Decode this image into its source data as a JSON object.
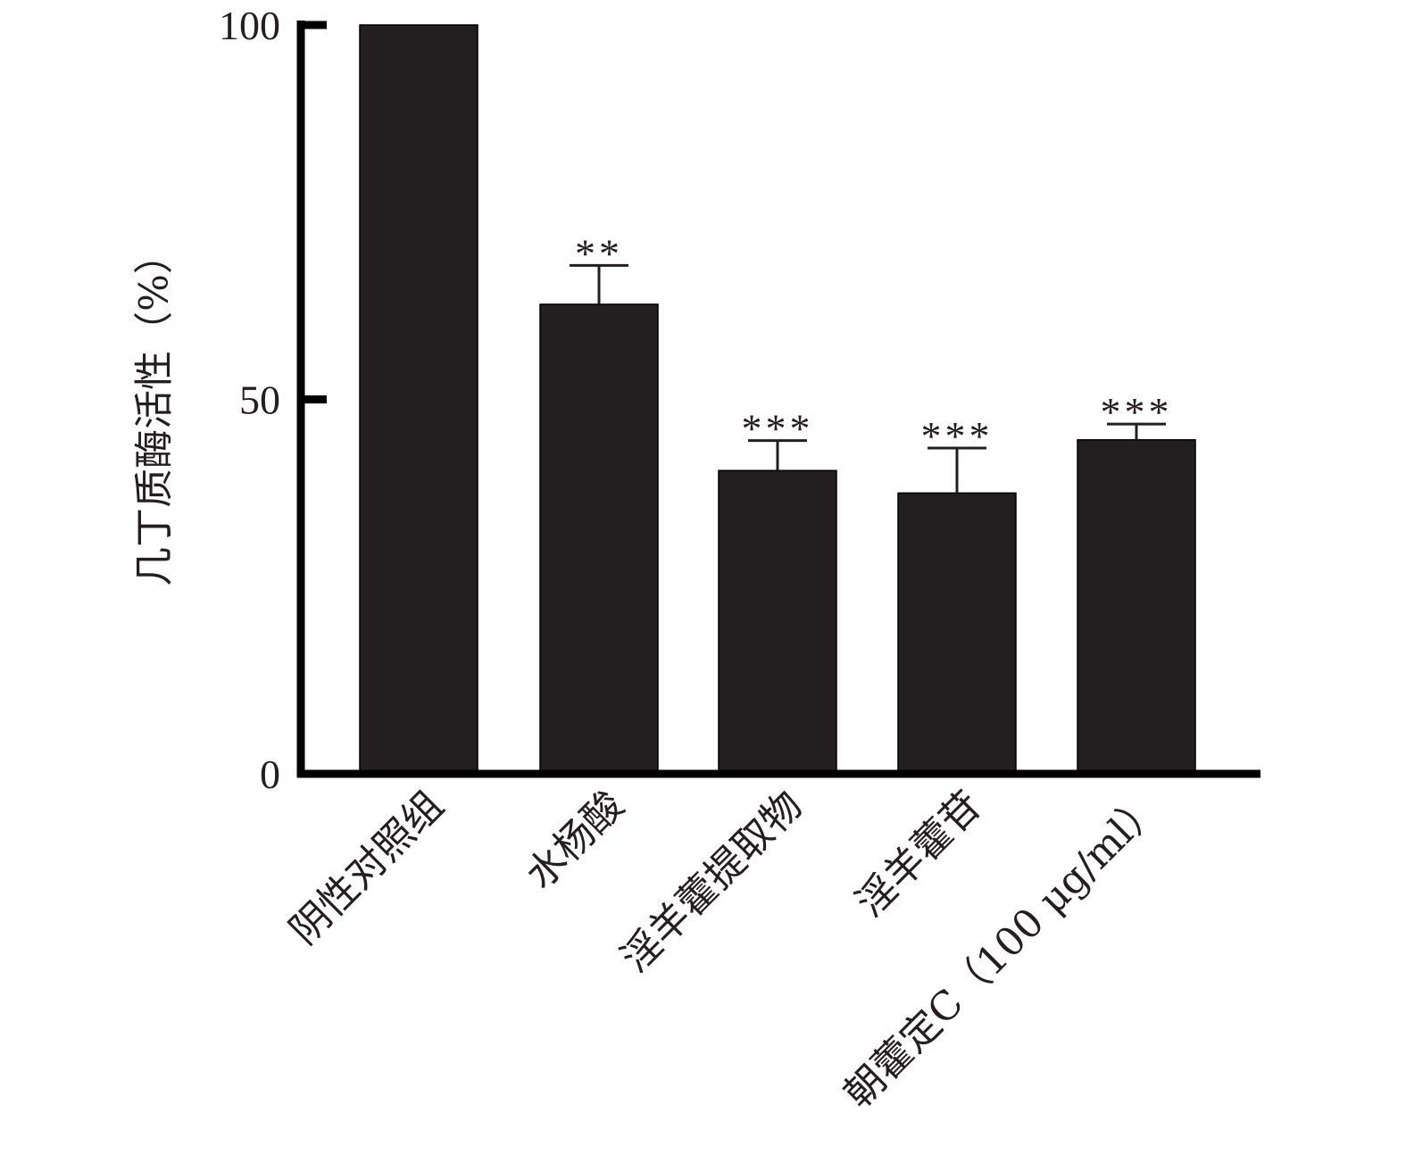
{
  "chart_data": {
    "type": "bar",
    "ylabel": "几丁质酶活性（%）",
    "ylim": [
      0,
      100
    ],
    "yticks": [
      0,
      50,
      100
    ],
    "grid": false,
    "categories": [
      "阴性对照组",
      "水杨酸",
      "淫羊藿提取物",
      "淫羊藿苷",
      "朝藿定C（100 μg/ml）"
    ],
    "values": [
      100,
      62.7,
      40.5,
      37.5,
      44.6
    ],
    "errors": [
      0,
      5.2,
      4.0,
      6.0,
      2.1
    ],
    "significance": [
      "",
      "**",
      "***",
      "***",
      "***"
    ],
    "colors": {
      "bar": "#231f20",
      "axis": "#000000",
      "text": "#231f20"
    }
  }
}
